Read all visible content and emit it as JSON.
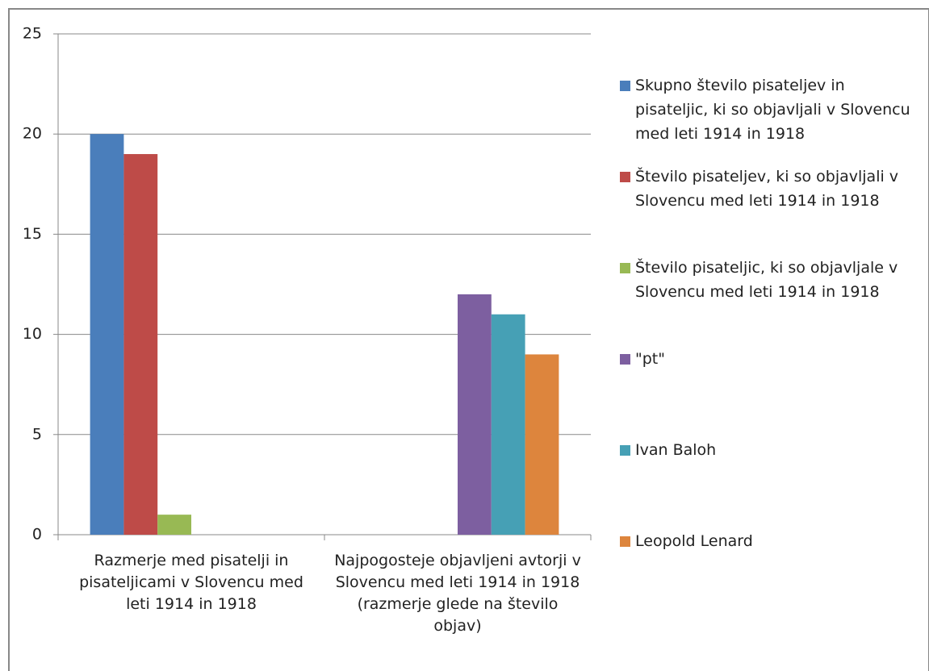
{
  "chart_data": {
    "type": "bar",
    "categories": [
      "Razmerje med pisatelji in pisateljicami v Slovencu med leti 1914 in 1918",
      "Najpogosteje objavljeni avtorji v Slovencu med leti 1914 in 1918 (razmerje glede na število objav)"
    ],
    "series": [
      {
        "name": "Skupno število pisateljev in pisateljic, ki so objavljali v Slovencu med leti 1914 in 1918",
        "color": "#4a7ebb",
        "values": [
          20,
          null
        ]
      },
      {
        "name": "Število pisateljev, ki so objavljali v Slovencu med leti 1914 in 1918",
        "color": "#be4b48",
        "values": [
          19,
          null
        ]
      },
      {
        "name": "Število pisateljic, ki so objavljale v Slovencu med leti 1914 in 1918",
        "color": "#98b954",
        "values": [
          1,
          null
        ]
      },
      {
        "name": "\"pt\"",
        "color": "#7d5fa0",
        "values": [
          null,
          12
        ]
      },
      {
        "name": "Ivan Baloh",
        "color": "#46a0b5",
        "values": [
          null,
          11
        ]
      },
      {
        "name": "Leopold Lenard",
        "color": "#dd853d",
        "values": [
          null,
          9
        ]
      }
    ],
    "ylim": [
      0,
      25
    ],
    "yticks": [
      0,
      5,
      10,
      15,
      20,
      25
    ],
    "grid": true,
    "legend": "right"
  }
}
